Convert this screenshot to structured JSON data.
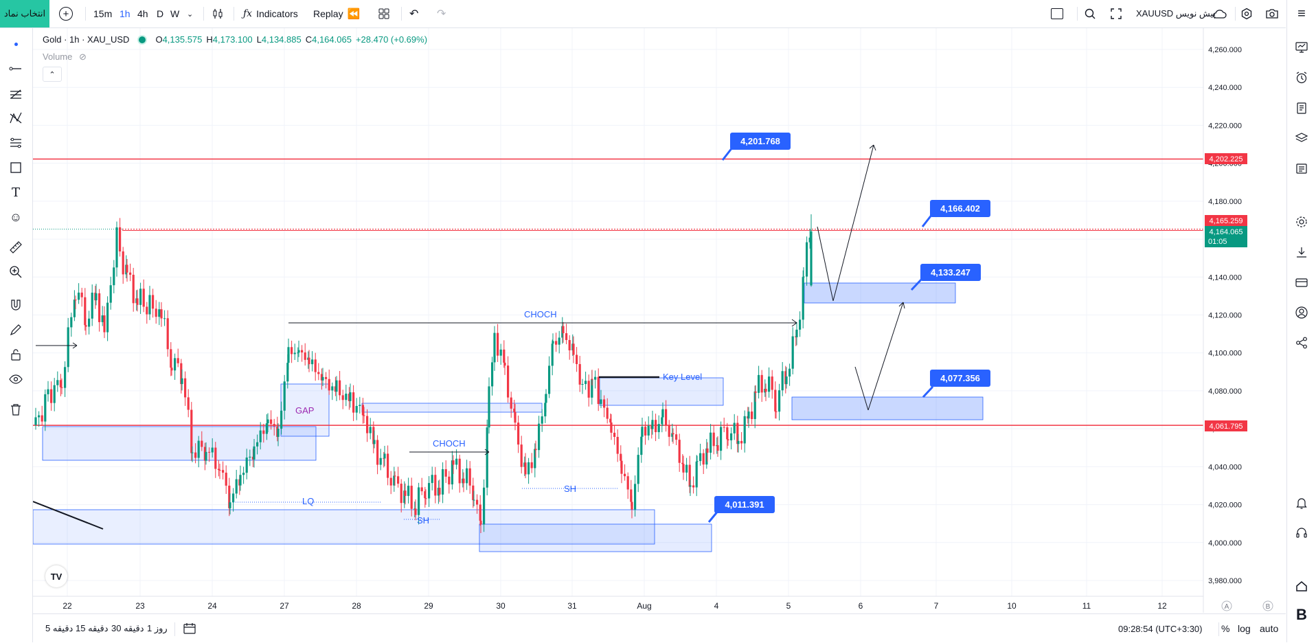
{
  "topbar": {
    "symbol_button": "انتخاب نماد",
    "timeframes": [
      "15m",
      "1h",
      "4h",
      "D",
      "W"
    ],
    "active_timeframe": "1h",
    "indicators_label": "Indicators",
    "replay_label": "Replay",
    "symbol_label": "XAUUSD پیش نویس"
  },
  "legend": {
    "title": "Gold · 1h · XAU_USD",
    "o_label": "O",
    "o_value": "4,135.575",
    "h_label": "H",
    "h_value": "4,173.100",
    "l_label": "L",
    "l_value": "4,134.885",
    "c_label": "C",
    "c_value": "4,164.065",
    "change": "+28.470 (+0.69%)",
    "volume_label": "Volume"
  },
  "price_axis": {
    "ticks": [
      "4,260.000",
      "4,240.000",
      "4,220.000",
      "4,200.000",
      "4,180.000",
      "4,160.000",
      "4,140.000",
      "4,120.000",
      "4,100.000",
      "4,080.000",
      "4,060.000",
      "4,040.000",
      "4,020.000",
      "4,000.000",
      "3,980.000"
    ],
    "tick_values": [
      4260,
      4240,
      4220,
      4200,
      4180,
      4160,
      4140,
      4120,
      4100,
      4080,
      4060,
      4040,
      4020,
      4000,
      3980
    ],
    "current_price": "4,164.065",
    "countdown": "01:05",
    "line_labels": [
      "4,202.225",
      "4,165.259",
      "4,061.795"
    ]
  },
  "time_axis": {
    "labels": [
      "22",
      "23",
      "24",
      "27",
      "28",
      "29",
      "30",
      "31",
      "Aug",
      "4",
      "5",
      "6",
      "7",
      "10",
      "11",
      "12"
    ],
    "a_label": "A",
    "b_label": "B"
  },
  "drawings": {
    "callouts": [
      "4,201.768",
      "4,166.402",
      "4,133.247",
      "4,077.356",
      "4,011.391"
    ],
    "texts": {
      "choch_top": "CHOCH",
      "choch_bottom": "CHOCH",
      "gap": "GAP",
      "lq": "LQ",
      "sh_left": "SH",
      "sh_right": "SH",
      "key_level": "Key Level"
    }
  },
  "bottombar": {
    "ranges": [
      "5 دقیقه",
      "15 دقیقه",
      "30 دقیقه",
      "1 روز"
    ],
    "clock": "09:28:54 (UTC+3:30)",
    "percent": "%",
    "log": "log",
    "auto": "auto"
  },
  "colors": {
    "up": "#089981",
    "down": "#f23645",
    "accent": "#2962ff",
    "zone_fill": "#dbe6fb",
    "symbol_btn": "#26c6a3"
  }
}
